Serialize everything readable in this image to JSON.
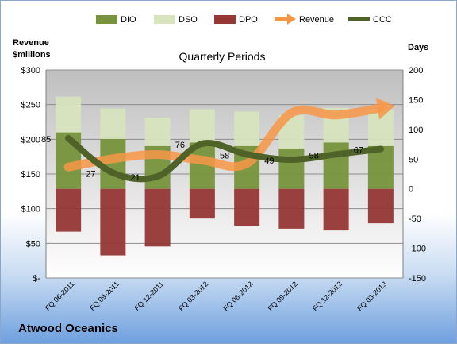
{
  "company": "Atwood Oceanics",
  "chart_data": {
    "type": "bar",
    "title": "Quarterly Periods",
    "left_axis_label_line1": "Revenue",
    "left_axis_label_line2": "$millions",
    "right_axis_label": "Days",
    "categories": [
      "FQ 06-2011",
      "FQ 09-2011",
      "FQ 12-2011",
      "FQ 03-2012",
      "FQ 06-2012",
      "FQ 09-2012",
      "FQ 12-2012",
      "FQ 03-2013"
    ],
    "left_ticks": [
      "$300",
      "$250",
      "$200",
      "$150",
      "$100",
      "$50",
      "$-"
    ],
    "right_ticks": [
      "200",
      "150",
      "100",
      "50",
      "0",
      "-50",
      "-100",
      "-150"
    ],
    "left_ylim": [
      0,
      300
    ],
    "right_ylim": [
      -150,
      200
    ],
    "grid": true,
    "legend_position": "top",
    "series": [
      {
        "name": "DIO",
        "axis": "right",
        "kind": "bar",
        "color": "#77933c",
        "values": [
          95,
          84,
          72,
          78,
          72,
          68,
          78,
          72
        ]
      },
      {
        "name": "DSO",
        "axis": "right",
        "kind": "bar",
        "color": "#d7e4bd",
        "values": [
          60,
          51,
          48,
          56,
          58,
          56,
          58,
          62
        ]
      },
      {
        "name": "DPO",
        "axis": "right",
        "kind": "bar",
        "color": "#953735",
        "values": [
          -72,
          -112,
          -97,
          -50,
          -62,
          -67,
          -70,
          -58
        ]
      },
      {
        "name": "Revenue",
        "axis": "left",
        "kind": "arrow-line",
        "color": "#f79646",
        "values": [
          160,
          172,
          178,
          170,
          165,
          238,
          235,
          245
        ]
      },
      {
        "name": "CCC",
        "axis": "right",
        "kind": "line",
        "color": "#4f6228",
        "values": [
          85,
          27,
          21,
          76,
          58,
          49,
          58,
          67
        ]
      }
    ],
    "data_labels": [
      "85",
      "27",
      "21",
      "76",
      "58",
      "49",
      "58",
      "67"
    ]
  }
}
